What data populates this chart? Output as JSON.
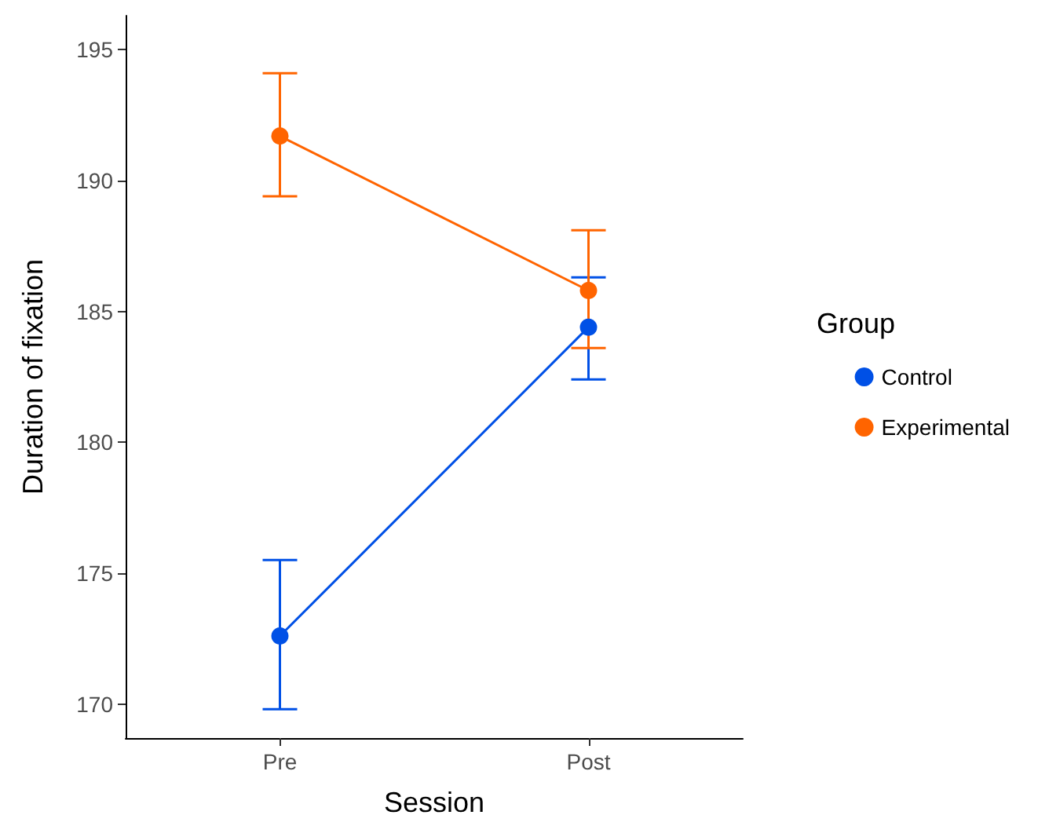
{
  "chart_data": {
    "type": "line",
    "xlabel": "Session",
    "ylabel": "Duration of fixation",
    "legend_title": "Group",
    "categories": [
      "Pre",
      "Post"
    ],
    "series": [
      {
        "name": "Control",
        "color": "#0050e6",
        "values": [
          172.6,
          184.4
        ],
        "errors": [
          [
            169.8,
            175.5
          ],
          [
            182.4,
            186.3
          ]
        ]
      },
      {
        "name": "Experimental",
        "color": "#ff6400",
        "values": [
          191.7,
          185.8
        ],
        "errors": [
          [
            189.4,
            194.1
          ],
          [
            183.6,
            188.1
          ]
        ]
      }
    ],
    "ylim": [
      168.7,
      196.3
    ],
    "yticks": [
      170,
      175,
      180,
      185,
      190,
      195
    ],
    "grid": false,
    "legend": "right",
    "marker": "circle",
    "line_style": "solid"
  }
}
